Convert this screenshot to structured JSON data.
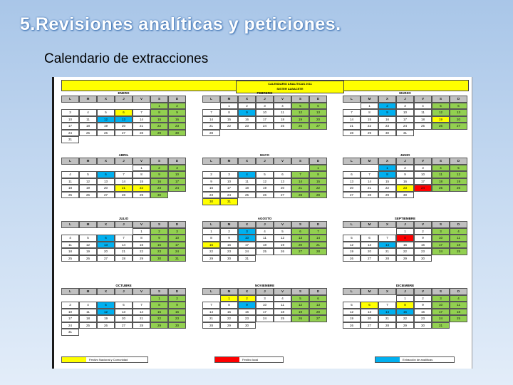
{
  "title": "5.Revisiones analíticas y peticiones.",
  "subtitle": "Calendario de extracciones",
  "calendar": {
    "header_line1": "CALENDARIO ANALITICAS 2011",
    "header_line2": "SISTER ALBACETE",
    "weekdays": [
      "L",
      "M",
      "X",
      "J",
      "V",
      "S",
      "D"
    ],
    "months": [
      {
        "name": "ENERO",
        "start": 5,
        "days": 31,
        "n": [
          6
        ],
        "l": [],
        "a": [
          12,
          13
        ]
      },
      {
        "name": "FEBRERO",
        "start": 1,
        "days": 28,
        "n": [],
        "l": [],
        "a": [
          9
        ]
      },
      {
        "name": "MARZO",
        "start": 1,
        "days": 31,
        "n": [
          19
        ],
        "l": [],
        "a": [
          2,
          9
        ]
      },
      {
        "name": "ABRIL",
        "start": 4,
        "days": 30,
        "n": [
          21,
          22
        ],
        "l": [],
        "a": [
          6
        ]
      },
      {
        "name": "MAYO",
        "start": 6,
        "days": 31,
        "n": [
          30,
          31
        ],
        "l": [],
        "a": [
          4
        ]
      },
      {
        "name": "JUNIO",
        "start": 2,
        "days": 30,
        "n": [
          23
        ],
        "l": [
          24
        ],
        "a": [
          1,
          8
        ]
      },
      {
        "name": "JULIO",
        "start": 4,
        "days": 31,
        "n": [],
        "l": [],
        "a": [
          6,
          13
        ]
      },
      {
        "name": "AGOSTO",
        "start": 0,
        "days": 31,
        "n": [
          15
        ],
        "l": [],
        "a": [
          3,
          10
        ]
      },
      {
        "name": "SEPTIEMBRE",
        "start": 3,
        "days": 30,
        "n": [],
        "l": [
          8
        ],
        "a": [
          14
        ]
      },
      {
        "name": "OCTUBRE",
        "start": 5,
        "days": 31,
        "n": [],
        "l": [],
        "a": [
          5,
          12
        ]
      },
      {
        "name": "NOVIEMBRE",
        "start": 1,
        "days": 30,
        "n": [
          1,
          2
        ],
        "l": [],
        "a": [
          9
        ]
      },
      {
        "name": "DICIEMBRE",
        "start": 3,
        "days": 31,
        "n": [
          6,
          8
        ],
        "l": [],
        "a": [
          14,
          15
        ]
      }
    ],
    "legend": {
      "national": "Festivo Nacional y Comunidad",
      "local": "Festivo local",
      "extraction": "Extracción de analíticas"
    },
    "colors": {
      "weekend": "#92d050",
      "national": "#ffff00",
      "local": "#ff0000",
      "extraction": "#00b0f0",
      "weekday_header": "#c0c0c0"
    }
  }
}
